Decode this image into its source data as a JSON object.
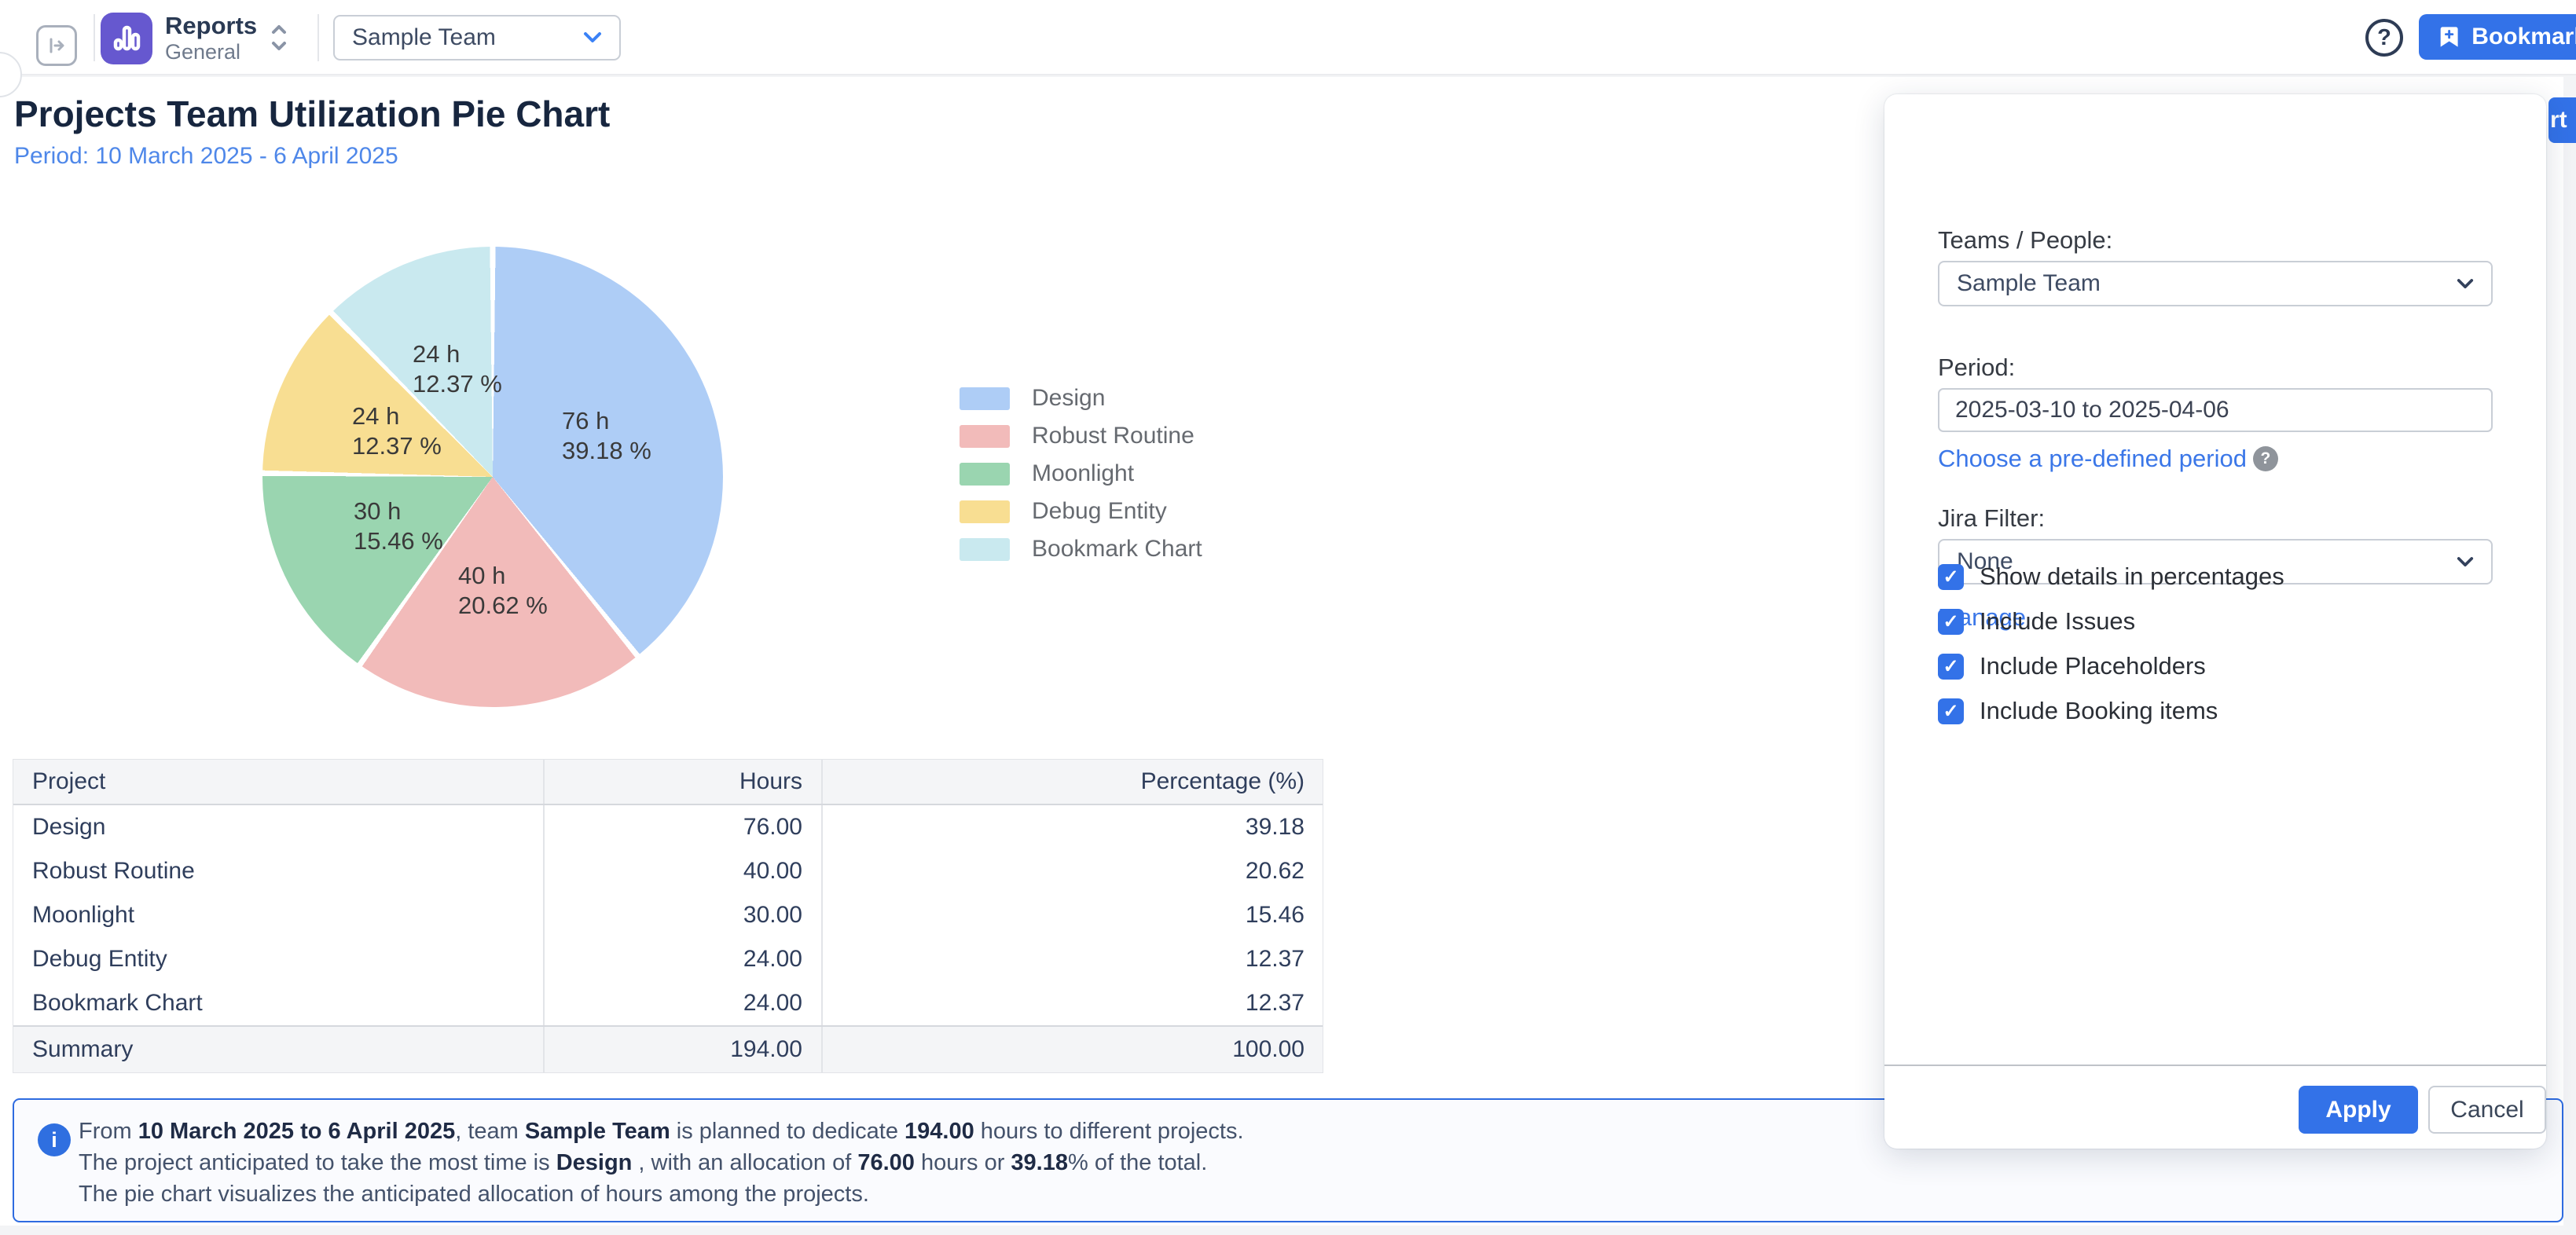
{
  "topbar": {
    "app": {
      "title": "Reports",
      "subtitle": "General"
    },
    "team_selector": {
      "value": "Sample Team"
    },
    "help_icon": "?",
    "bookmark_button": {
      "label": "Bookmark"
    }
  },
  "header": {
    "title": "Projects Team Utilization Pie Chart",
    "period_subtitle": "Period: 10 March 2025 - 6 April 2025"
  },
  "chart_data": {
    "type": "pie",
    "title": "Projects Team Utilization Pie Chart",
    "period": "10 March 2025 - 6 April 2025",
    "unit": "hours",
    "total_hours": 194,
    "legend_position": "right",
    "slices": [
      {
        "label": "Design",
        "hours": 76,
        "percent": 39.18,
        "color": "#aecdf6",
        "value_label": "76 h",
        "percent_label": "39.18 %"
      },
      {
        "label": "Robust Routine",
        "hours": 40,
        "percent": 20.62,
        "color": "#f2bbba",
        "value_label": "40 h",
        "percent_label": "20.62 %"
      },
      {
        "label": "Moonlight",
        "hours": 30,
        "percent": 15.46,
        "color": "#9ad5b0",
        "value_label": "30 h",
        "percent_label": "15.46 %"
      },
      {
        "label": "Debug Entity",
        "hours": 24,
        "percent": 12.37,
        "color": "#f8de92",
        "value_label": "24 h",
        "percent_label": "12.37 %"
      },
      {
        "label": "Bookmark Chart",
        "hours": 24,
        "percent": 12.37,
        "color": "#c9e9ef",
        "value_label": "24 h",
        "percent_label": "12.37 %"
      }
    ]
  },
  "table": {
    "headers": [
      "Project",
      "Hours",
      "Percentage (%)"
    ],
    "rows": [
      [
        "Design",
        "76.00",
        "39.18"
      ],
      [
        "Robust Routine",
        "40.00",
        "20.62"
      ],
      [
        "Moonlight",
        "30.00",
        "15.46"
      ],
      [
        "Debug Entity",
        "24.00",
        "12.37"
      ],
      [
        "Bookmark Chart",
        "24.00",
        "12.37"
      ]
    ],
    "summary": [
      "Summary",
      "194.00",
      "100.00"
    ]
  },
  "note": {
    "lines": [
      [
        {
          "t": "From "
        },
        {
          "t": "10 March 2025 to 6 April 2025",
          "b": true
        },
        {
          "t": ", team "
        },
        {
          "t": "Sample Team",
          "b": true
        },
        {
          "t": " is planned to dedicate "
        },
        {
          "t": "194.00",
          "b": true
        },
        {
          "t": " hours to different projects."
        }
      ],
      [
        {
          "t": "The project anticipated to take the most time is "
        },
        {
          "t": "Design",
          "b": true
        },
        {
          "t": " , with an allocation of "
        },
        {
          "t": "76.00",
          "b": true
        },
        {
          "t": " hours or "
        },
        {
          "t": "39.18",
          "b": true
        },
        {
          "t": "% of the total."
        }
      ],
      [
        {
          "t": "The pie chart visualizes the anticipated allocation of hours among the projects."
        }
      ]
    ]
  },
  "panel": {
    "teams_label": "Teams / People:",
    "teams_value": "Sample Team",
    "period_label": "Period:",
    "period_value": "2025-03-10 to 2025-04-06",
    "predefined_link": "Choose a pre-defined period",
    "jira_filter_label": "Jira Filter:",
    "jira_filter_value": "None",
    "manage_link": "Manage",
    "checkboxes": [
      {
        "label": "Show details in percentages",
        "checked": true
      },
      {
        "label": "Include Issues",
        "checked": true
      },
      {
        "label": "Include Placeholders",
        "checked": true
      },
      {
        "label": "Include Booking items",
        "checked": true
      }
    ],
    "apply_button": "Apply",
    "cancel_button": "Cancel"
  },
  "clipped_button": {
    "visible_text": "rt"
  },
  "colors": {
    "accent_blue": "#3372e8",
    "link_blue": "#3b77e8",
    "subtitle_blue": "#4e87e9",
    "note_border": "#2e6be0",
    "logo_purple": "#6658cf",
    "title_navy": "#17263f"
  }
}
